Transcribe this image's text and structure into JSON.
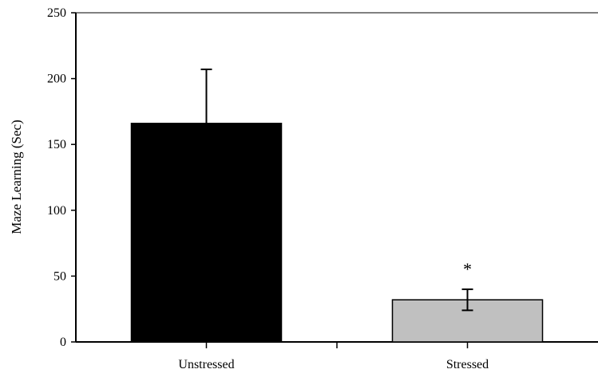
{
  "chart_data": {
    "type": "bar",
    "title": "",
    "xlabel": "",
    "ylabel": "Maze Learning (Sec)",
    "categories": [
      "Unstressed",
      "Stressed"
    ],
    "values": [
      166,
      32
    ],
    "error": [
      41,
      8
    ],
    "bar_colors": [
      "#000000",
      "#c0c0c0"
    ],
    "ylim": [
      0,
      250
    ],
    "yticks": [
      "0",
      "50",
      "100",
      "150",
      "200",
      "250"
    ],
    "annotations": [
      {
        "category": "Stressed",
        "text": "*"
      }
    ],
    "grid": false,
    "legend": "none"
  }
}
